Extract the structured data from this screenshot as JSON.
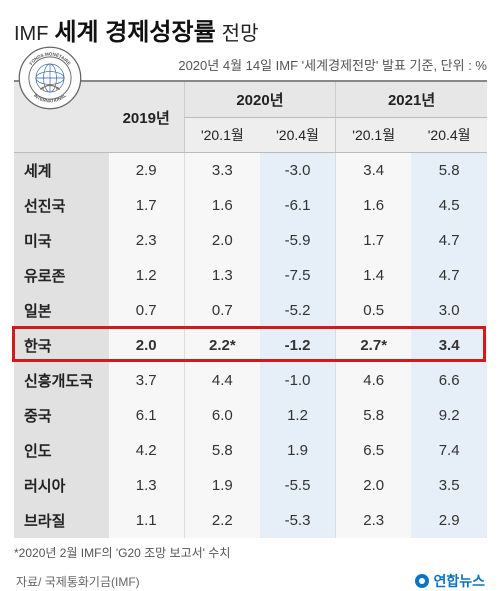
{
  "title": {
    "prefix": "IMF",
    "main": "세계 경제성장률",
    "suffix": "전망"
  },
  "subtitle": "2020년 4월 14일 IMF '세계경제전망' 발표 기준, 단위 : %",
  "headers": {
    "col1": "2019년",
    "group1": "2020년",
    "group2": "2021년",
    "sub_a": "'20.1월",
    "sub_b": "'20.4월"
  },
  "rows": [
    {
      "label": "세계",
      "v": [
        "2.9",
        "3.3",
        "-3.0",
        "3.4",
        "5.8"
      ],
      "hl": false
    },
    {
      "label": "선진국",
      "v": [
        "1.7",
        "1.6",
        "-6.1",
        "1.6",
        "4.5"
      ],
      "hl": false
    },
    {
      "label": "미국",
      "v": [
        "2.3",
        "2.0",
        "-5.9",
        "1.7",
        "4.7"
      ],
      "hl": false
    },
    {
      "label": "유로존",
      "v": [
        "1.2",
        "1.3",
        "-7.5",
        "1.4",
        "4.7"
      ],
      "hl": false
    },
    {
      "label": "일본",
      "v": [
        "0.7",
        "0.7",
        "-5.2",
        "0.5",
        "3.0"
      ],
      "hl": false
    },
    {
      "label": "한국",
      "v": [
        "2.0",
        "2.2*",
        "-1.2",
        "2.7*",
        "3.4"
      ],
      "hl": true
    },
    {
      "label": "신흥개도국",
      "v": [
        "3.7",
        "4.4",
        "-1.0",
        "4.6",
        "6.6"
      ],
      "hl": false
    },
    {
      "label": "중국",
      "v": [
        "6.1",
        "6.0",
        "1.2",
        "5.8",
        "9.2"
      ],
      "hl": false
    },
    {
      "label": "인도",
      "v": [
        "4.2",
        "5.8",
        "1.9",
        "6.5",
        "7.4"
      ],
      "hl": false
    },
    {
      "label": "러시아",
      "v": [
        "1.3",
        "1.9",
        "-5.5",
        "2.0",
        "3.5"
      ],
      "hl": false
    },
    {
      "label": "브라질",
      "v": [
        "1.1",
        "2.2",
        "-5.3",
        "2.3",
        "2.9"
      ],
      "hl": false
    }
  ],
  "footnote": "*2020년 2월 IMF의 'G20 조망 보고서' 수치",
  "source": "자료/ 국제통화기금(IMF)",
  "agency": "연합뉴스",
  "logo": {
    "outer_text_top": "FONDS MONÉTAIRE",
    "outer_text_bottom": "INTERNATIONAL"
  },
  "colors": {
    "highlight_border": "#d21a1a",
    "header_bg": "#e7e7e7",
    "label_bg": "#e1e1e1",
    "val_bg": "#f7f7f7",
    "val_blue_bg": "#e6eef7",
    "agency_blue": "#0b74c4"
  }
}
